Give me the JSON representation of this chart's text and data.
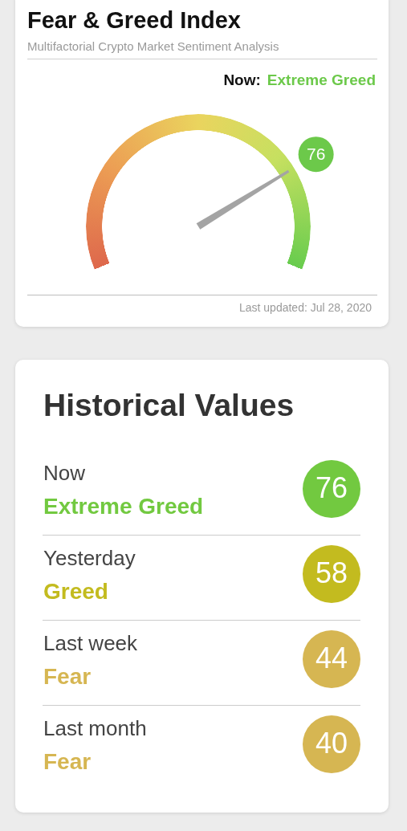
{
  "chart_data": [
    {
      "type": "other",
      "title": "Fear & Greed Index",
      "subtitle": "Multifactorial Crypto Market Sentiment Analysis",
      "legend_title": "Now:",
      "categories": [
        "Extreme Greed"
      ],
      "values": [
        76
      ],
      "color": "#6cc94a",
      "data_labels": true,
      "annotations": [
        "Last updated: Jul 28, 2020"
      ]
    },
    {
      "type": "other",
      "title": "Historical Values",
      "categories": [
        "Now",
        "Yesterday",
        "Last week",
        "Last month"
      ],
      "series": [
        {
          "name": "Extreme Greed",
          "color": "#72c940",
          "values": [
            76,
            null,
            null,
            null
          ]
        },
        {
          "name": "Greed",
          "color": "#c3bb1f",
          "values": [
            null,
            58,
            null,
            null
          ]
        },
        {
          "name": "Fear",
          "color": "#d6b652",
          "values": [
            null,
            null,
            44,
            40
          ]
        }
      ],
      "data_labels": true
    }
  ]
}
